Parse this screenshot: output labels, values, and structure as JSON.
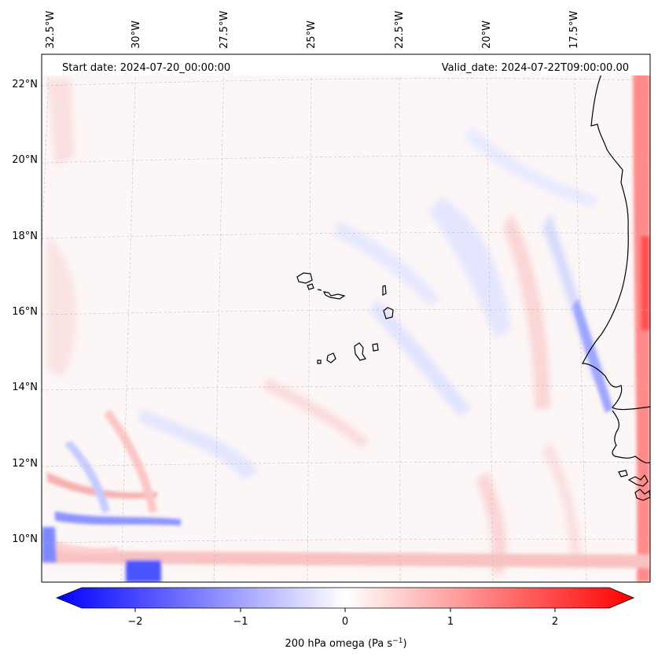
{
  "header": {
    "start_date": "Start date: 2024-07-20_00:00:00",
    "valid_date": "Valid_date: 2024-07-22T09:00:00.00"
  },
  "map": {
    "projection": "Lambert conformal",
    "field": "omega",
    "level": "200 hPa",
    "lon_labels": [
      "32.5°W",
      "30°W",
      "27.5°W",
      "25°W",
      "22.5°W",
      "20°W",
      "17.5°W"
    ],
    "lat_labels": [
      "22°N",
      "20°N",
      "18°N",
      "16°N",
      "14°N",
      "12°N",
      "10°N"
    ],
    "gridlines": true,
    "coastline_color": "#000000"
  },
  "colorbar": {
    "label_prefix": "200 hPa omega (Pa s",
    "label_exp": "−1",
    "label_suffix": ")",
    "ticks": [
      "−2",
      "−1",
      "0",
      "1",
      "2"
    ],
    "range": [
      -2.7,
      2.7
    ],
    "low_color": "#0000ff",
    "mid_color": "#ffffff",
    "high_color": "#ff0000",
    "extend": "both"
  }
}
